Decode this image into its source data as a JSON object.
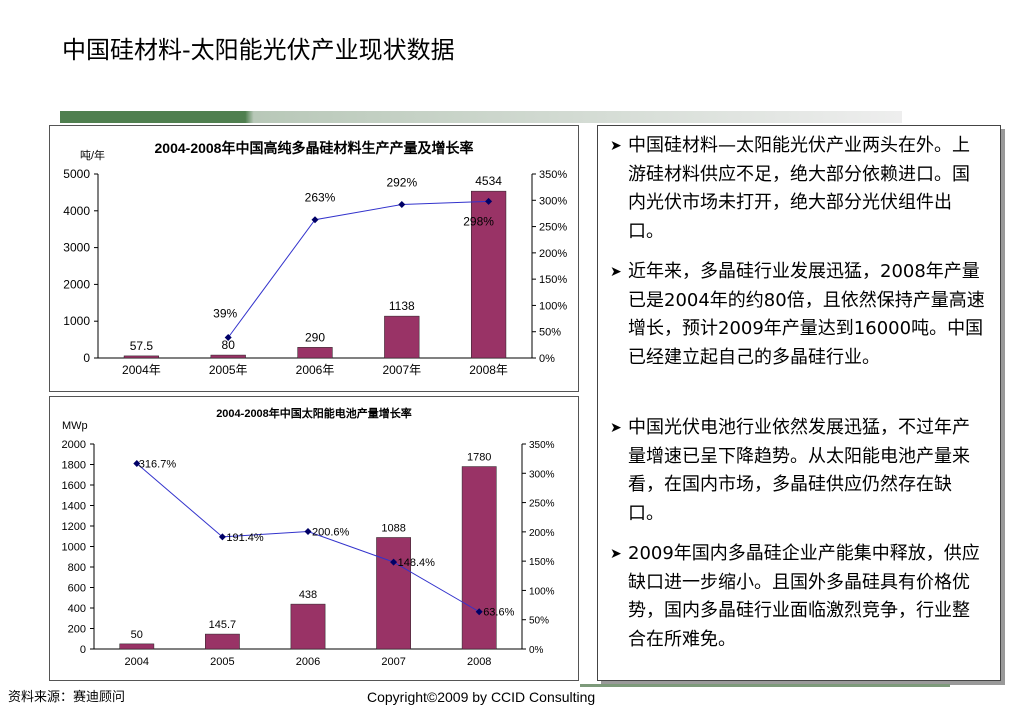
{
  "page": {
    "title": "中国硅材料-太阳能光伏产业现状数据",
    "source": "资料来源：赛迪顾问",
    "copyright": "Copyright©2009 by CCID Consulting"
  },
  "colors": {
    "bar": "#993366",
    "line": "#3333cc",
    "deco_dark": "#4f7f4f",
    "deco_light": "#c8c8c8"
  },
  "bullets": [
    {
      "icon": "arrow-bullet-icon",
      "text": "中国硅材料—太阳能光伏产业两头在外。上游硅材料供应不足，绝大部分依赖进口。国内光伏市场未打开，绝大部分光伏组件出口。"
    },
    {
      "icon": "arrow-bullet-icon",
      "text": "近年来，多晶硅行业发展迅猛，2008年产量已是2004年的约80倍，且依然保持产量高速增长，预计2009年产量达到16000吨。中国已经建立起自己的多晶硅行业。"
    },
    {
      "icon": "arrow-bullet-icon",
      "text": "中国光伏电池行业依然发展迅猛，不过年产量增速已呈下降趋势。从太阳能电池产量来看，在国内市场，多晶硅供应仍然存在缺口。"
    },
    {
      "icon": "arrow-bullet-icon",
      "text": "2009年国内多晶硅企业产能集中释放，供应缺口进一步缩小。且国外多晶硅具有价格优势，国内多晶硅行业面临激烈竞争，行业整合在所难免。"
    }
  ],
  "chart_data": [
    {
      "type": "bar",
      "title": "2004-2008年中国高纯多晶硅材料生产产量及增长率",
      "ylabel": "吨/年",
      "categories": [
        "2004年",
        "2005年",
        "2006年",
        "2007年",
        "2008年"
      ],
      "values": [
        57.5,
        80,
        290,
        1138,
        4534
      ],
      "value_labels": [
        "57.5",
        "80",
        "290",
        "1138",
        "4534"
      ],
      "ylim": [
        0,
        5000
      ],
      "yticks": [
        "0",
        "1000",
        "2000",
        "3000",
        "4000",
        "5000"
      ],
      "y2lim": [
        0,
        350
      ],
      "y2ticks": [
        "0%",
        "50%",
        "100%",
        "150%",
        "200%",
        "250%",
        "300%",
        "350%"
      ],
      "line": {
        "x": [
          "2005年",
          "2006年",
          "2007年",
          "2008年"
        ],
        "values": [
          39,
          263,
          292,
          298
        ],
        "labels": [
          "39%",
          "263%",
          "292%",
          "298%"
        ]
      },
      "grid": false
    },
    {
      "type": "bar",
      "title": "2004-2008年中国太阳能电池产量增长率",
      "ylabel": "MWp",
      "categories": [
        "2004",
        "2005",
        "2006",
        "2007",
        "2008"
      ],
      "values": [
        50,
        145.7,
        438,
        1088,
        1780
      ],
      "value_labels": [
        "50",
        "145.7",
        "438",
        "1088",
        "1780"
      ],
      "ylim": [
        0,
        2000
      ],
      "yticks": [
        "0",
        "200",
        "400",
        "600",
        "800",
        "1000",
        "1200",
        "1400",
        "1600",
        "1800",
        "2000"
      ],
      "y2lim": [
        0,
        350
      ],
      "y2ticks": [
        "0%",
        "50%",
        "100%",
        "150%",
        "200%",
        "250%",
        "300%",
        "350%"
      ],
      "line": {
        "x": [
          "2004",
          "2005",
          "2006",
          "2007",
          "2008"
        ],
        "values": [
          316.7,
          191.4,
          200.6,
          148.4,
          63.6
        ],
        "labels": [
          "316.7%",
          "191.4%",
          "200.6%",
          "148.4%",
          "63.6%"
        ]
      },
      "grid": false
    }
  ]
}
